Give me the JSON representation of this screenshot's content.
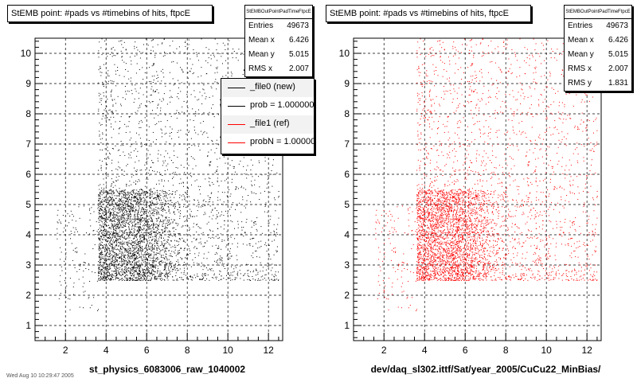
{
  "chart_data": [
    {
      "type": "scatter",
      "title": "StEMB point: #pads vs #timebins of hits, ftpcE",
      "xlabel": "st_physics_6083006_raw_1040002",
      "ylabel": "",
      "xlim": [
        0.5,
        12.7
      ],
      "ylim": [
        0.5,
        10.5
      ],
      "xticks": [
        2,
        4,
        6,
        8,
        10,
        12
      ],
      "yticks": [
        1,
        2,
        3,
        4,
        5,
        6,
        7,
        8,
        9,
        10
      ],
      "grid": true,
      "marker_color": "#000000",
      "stats": {
        "name": "StEMBOutPointPadTimeFtpcE",
        "rows": [
          {
            "label": "Entries",
            "value": "49673"
          },
          {
            "label": "Mean x",
            "value": "6.426"
          },
          {
            "label": "Mean y",
            "value": "5.015"
          },
          {
            "label": "RMS x",
            "value": "2.007"
          }
        ]
      },
      "legend": {
        "position": "top-right",
        "entries": [
          {
            "label": "_file0 (new)",
            "color": "#000000"
          },
          {
            "label": "prob = 1.000000",
            "color": "#000000"
          },
          {
            "label": "_file1 (ref)",
            "color": "#ff0000"
          },
          {
            "label": "probN = 1.000000",
            "color": "#ff0000"
          }
        ]
      },
      "distribution": {
        "x_range": [
          1.5,
          12.5
        ],
        "y_range": [
          1.5,
          10.5
        ],
        "core_x": [
          3.6,
          8.0
        ],
        "core_y": [
          2.5,
          5.5
        ]
      }
    },
    {
      "type": "scatter",
      "title": "StEMB point: #pads vs #timebins of hits, ftpcE",
      "xlabel": "dev/daq_sl302.ittf/Sat/year_2005/CuCu22_MinBias/",
      "ylabel": "",
      "xlim": [
        0.5,
        12.7
      ],
      "ylim": [
        0.5,
        10.5
      ],
      "xticks": [
        2,
        4,
        6,
        8,
        10,
        12
      ],
      "yticks": [
        1,
        2,
        3,
        4,
        5,
        6,
        7,
        8,
        9,
        10
      ],
      "grid": true,
      "marker_color": "#ff0000",
      "stats": {
        "name": "StEMBOutPointPadTimeFtpcE",
        "rows": [
          {
            "label": "Entries",
            "value": "49673"
          },
          {
            "label": "Mean x",
            "value": "6.426"
          },
          {
            "label": "Mean y",
            "value": "5.015"
          },
          {
            "label": "RMS x",
            "value": "2.007"
          },
          {
            "label": "RMS y",
            "value": "1.831"
          }
        ]
      },
      "distribution": {
        "x_range": [
          1.5,
          12.5
        ],
        "y_range": [
          1.5,
          10.5
        ],
        "core_x": [
          3.6,
          8.0
        ],
        "core_y": [
          2.5,
          5.5
        ]
      }
    }
  ],
  "footer": "Wed Aug 10 10:29:47 2005"
}
